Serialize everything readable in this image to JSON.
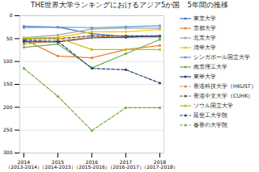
{
  "chart_data": {
    "type": "line",
    "title": "THE世界大学ランキングにおけるアジア5か国　5年間の推移",
    "categories": [
      "2014\n（2013-2014）",
      "2015\n（2014-2015）",
      "2016\n（2015-2016）",
      "2017\n（2016-2017）",
      "2018\n（2017-2018）"
    ],
    "ylim": [
      300,
      0
    ],
    "yticks": [
      0,
      50,
      100,
      150,
      200,
      250,
      300
    ],
    "grid": true,
    "legend": "right",
    "marker": "circle",
    "series": [
      {
        "name": "東京大学",
        "color": "#4472C4",
        "line_style": "solid",
        "values": [
          23,
          25,
          39,
          46,
          46
        ]
      },
      {
        "name": "京都大学",
        "color": "#ED7D31",
        "line_style": "solid",
        "values": [
          52,
          88,
          92,
          74,
          65
        ]
      },
      {
        "name": "北京大学",
        "color": "#A5A5A5",
        "line_style": "solid",
        "values": [
          48,
          42,
          29,
          27,
          27
        ]
      },
      {
        "name": "清華大学",
        "color": "#FFC000",
        "line_style": "solid",
        "values": [
          49,
          47,
          35,
          35,
          30
        ]
      },
      {
        "name": "シンガポール国立大学",
        "color": "#5B9BD5",
        "line_style": "solid",
        "values": [
          26,
          25,
          26,
          24,
          22
        ]
      },
      {
        "name": "南京理工大学",
        "color": "#70AD47",
        "line_style": "solid",
        "values": [
          69,
          62,
          114,
          83,
          52
        ]
      },
      {
        "name": "東華大学",
        "color": "#264478",
        "line_style": "solid",
        "values": [
          57,
          57,
          48,
          47,
          44
        ]
      },
      {
        "name": "香港科技大学（HKUST）",
        "color": "#ED7D31",
        "line_style": "dashed",
        "values": [
          62,
          55,
          47,
          44,
          44
        ]
      },
      {
        "name": "香港中文大学（CUHK）",
        "color": "#595959",
        "line_style": "dashed",
        "values": [
          51,
          50,
          44,
          44,
          44
        ]
      },
      {
        "name": "ソウル国立大学",
        "color": "#BFBF00",
        "line_style": "solid",
        "values": [
          50,
          48,
          74,
          74,
          74
        ]
      },
      {
        "name": "延世工大学院",
        "color": "#264478",
        "line_style": "dashed",
        "values": [
          54,
          56,
          115,
          118,
          147
        ]
      },
      {
        "name": "春香の大学院",
        "color": "#70AD47",
        "line_style": "dashed",
        "values": [
          115,
          176,
          251,
          201,
          201
        ]
      }
    ]
  }
}
